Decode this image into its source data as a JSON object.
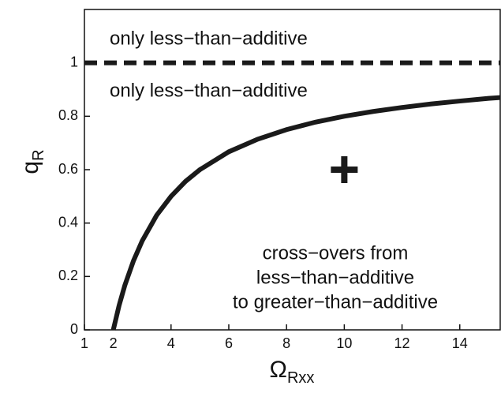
{
  "chart_data": {
    "type": "line",
    "xlabel": {
      "text": "Ω",
      "sub": "Rxx"
    },
    "ylabel": {
      "text": "q",
      "sub": "R"
    },
    "xlim": [
      1,
      15.4
    ],
    "ylim": [
      0,
      1.2
    ],
    "xticks": [
      1,
      2,
      4,
      6,
      8,
      10,
      12,
      14
    ],
    "yticks": [
      0,
      0.2,
      0.4,
      0.6,
      0.8,
      1
    ],
    "grid": false,
    "series": [
      {
        "style": "solid",
        "color": "#1a1a1a",
        "x": [
          2,
          2.2,
          2.4,
          2.7,
          3,
          3.5,
          4,
          4.5,
          5,
          6,
          7,
          8,
          9,
          10,
          11,
          12,
          13,
          14,
          15,
          15.4
        ],
        "values": [
          0,
          0.091,
          0.167,
          0.259,
          0.333,
          0.429,
          0.5,
          0.556,
          0.6,
          0.667,
          0.714,
          0.75,
          0.778,
          0.8,
          0.818,
          0.833,
          0.846,
          0.857,
          0.867,
          0.87
        ]
      },
      {
        "style": "dashed",
        "color": "#1a1a1a",
        "x": [
          1,
          15.4
        ],
        "values": [
          1,
          1
        ]
      },
      {
        "style": "plus",
        "color": "#1a1a1a",
        "x": [
          10
        ],
        "values": [
          0.6
        ]
      }
    ],
    "annotations": [
      {
        "lines": [
          "only less−than−additive"
        ]
      },
      {
        "lines": [
          "only less−than−additive"
        ]
      },
      {
        "lines": [
          "cross−overs from",
          "less−than−additive",
          "to greater−than−additive"
        ]
      }
    ]
  }
}
